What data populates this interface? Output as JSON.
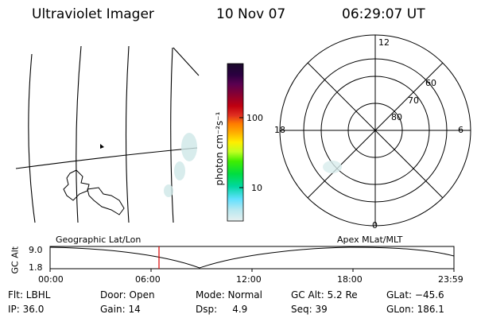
{
  "header": {
    "instrument": "Ultraviolet Imager",
    "date": "10 Nov 07",
    "time": "06:29:07 UT"
  },
  "colorbar": {
    "unit_label": "photon cm⁻²s⁻¹",
    "ticks": [
      "100",
      "10"
    ],
    "colors": [
      "#1a0a2a",
      "#2a0040",
      "#5a0050",
      "#8a0030",
      "#c00010",
      "#e03020",
      "#ff7a00",
      "#ffb000",
      "#ffee00",
      "#c0ff20",
      "#40ee00",
      "#00dd40",
      "#00d8a0",
      "#60e0ff",
      "#b8e8f0",
      "#e6f0f0"
    ]
  },
  "polar_plot": {
    "mlt_labels": {
      "top": "12",
      "left": "18",
      "right": "6",
      "bottom": "0"
    },
    "lat_labels": [
      "60",
      "70",
      "80"
    ]
  },
  "orbit_plot": {
    "left_title": "Geographic Lat/Lon",
    "right_title": "Apex MLat/MLT",
    "ylabel": "GC Alt",
    "y_ticks": [
      "9.0",
      "1.8"
    ],
    "x_ticks": [
      "00:00",
      "06:00",
      "12:00",
      "18:00",
      "23:59"
    ],
    "current_marker_color": "#dd0000"
  },
  "status": {
    "flt": "Flt: LBHL",
    "ip": "IP: 36.0",
    "door": "Door: Open",
    "gain": "Gain: 14",
    "mode": "Mode: Normal",
    "dsp": "Dsp:     4.9",
    "gcalt": "GC Alt: 5.2 Re",
    "seq": "Seq: 39",
    "glat": "GLat: −45.6",
    "glon": "GLon: 186.1"
  }
}
